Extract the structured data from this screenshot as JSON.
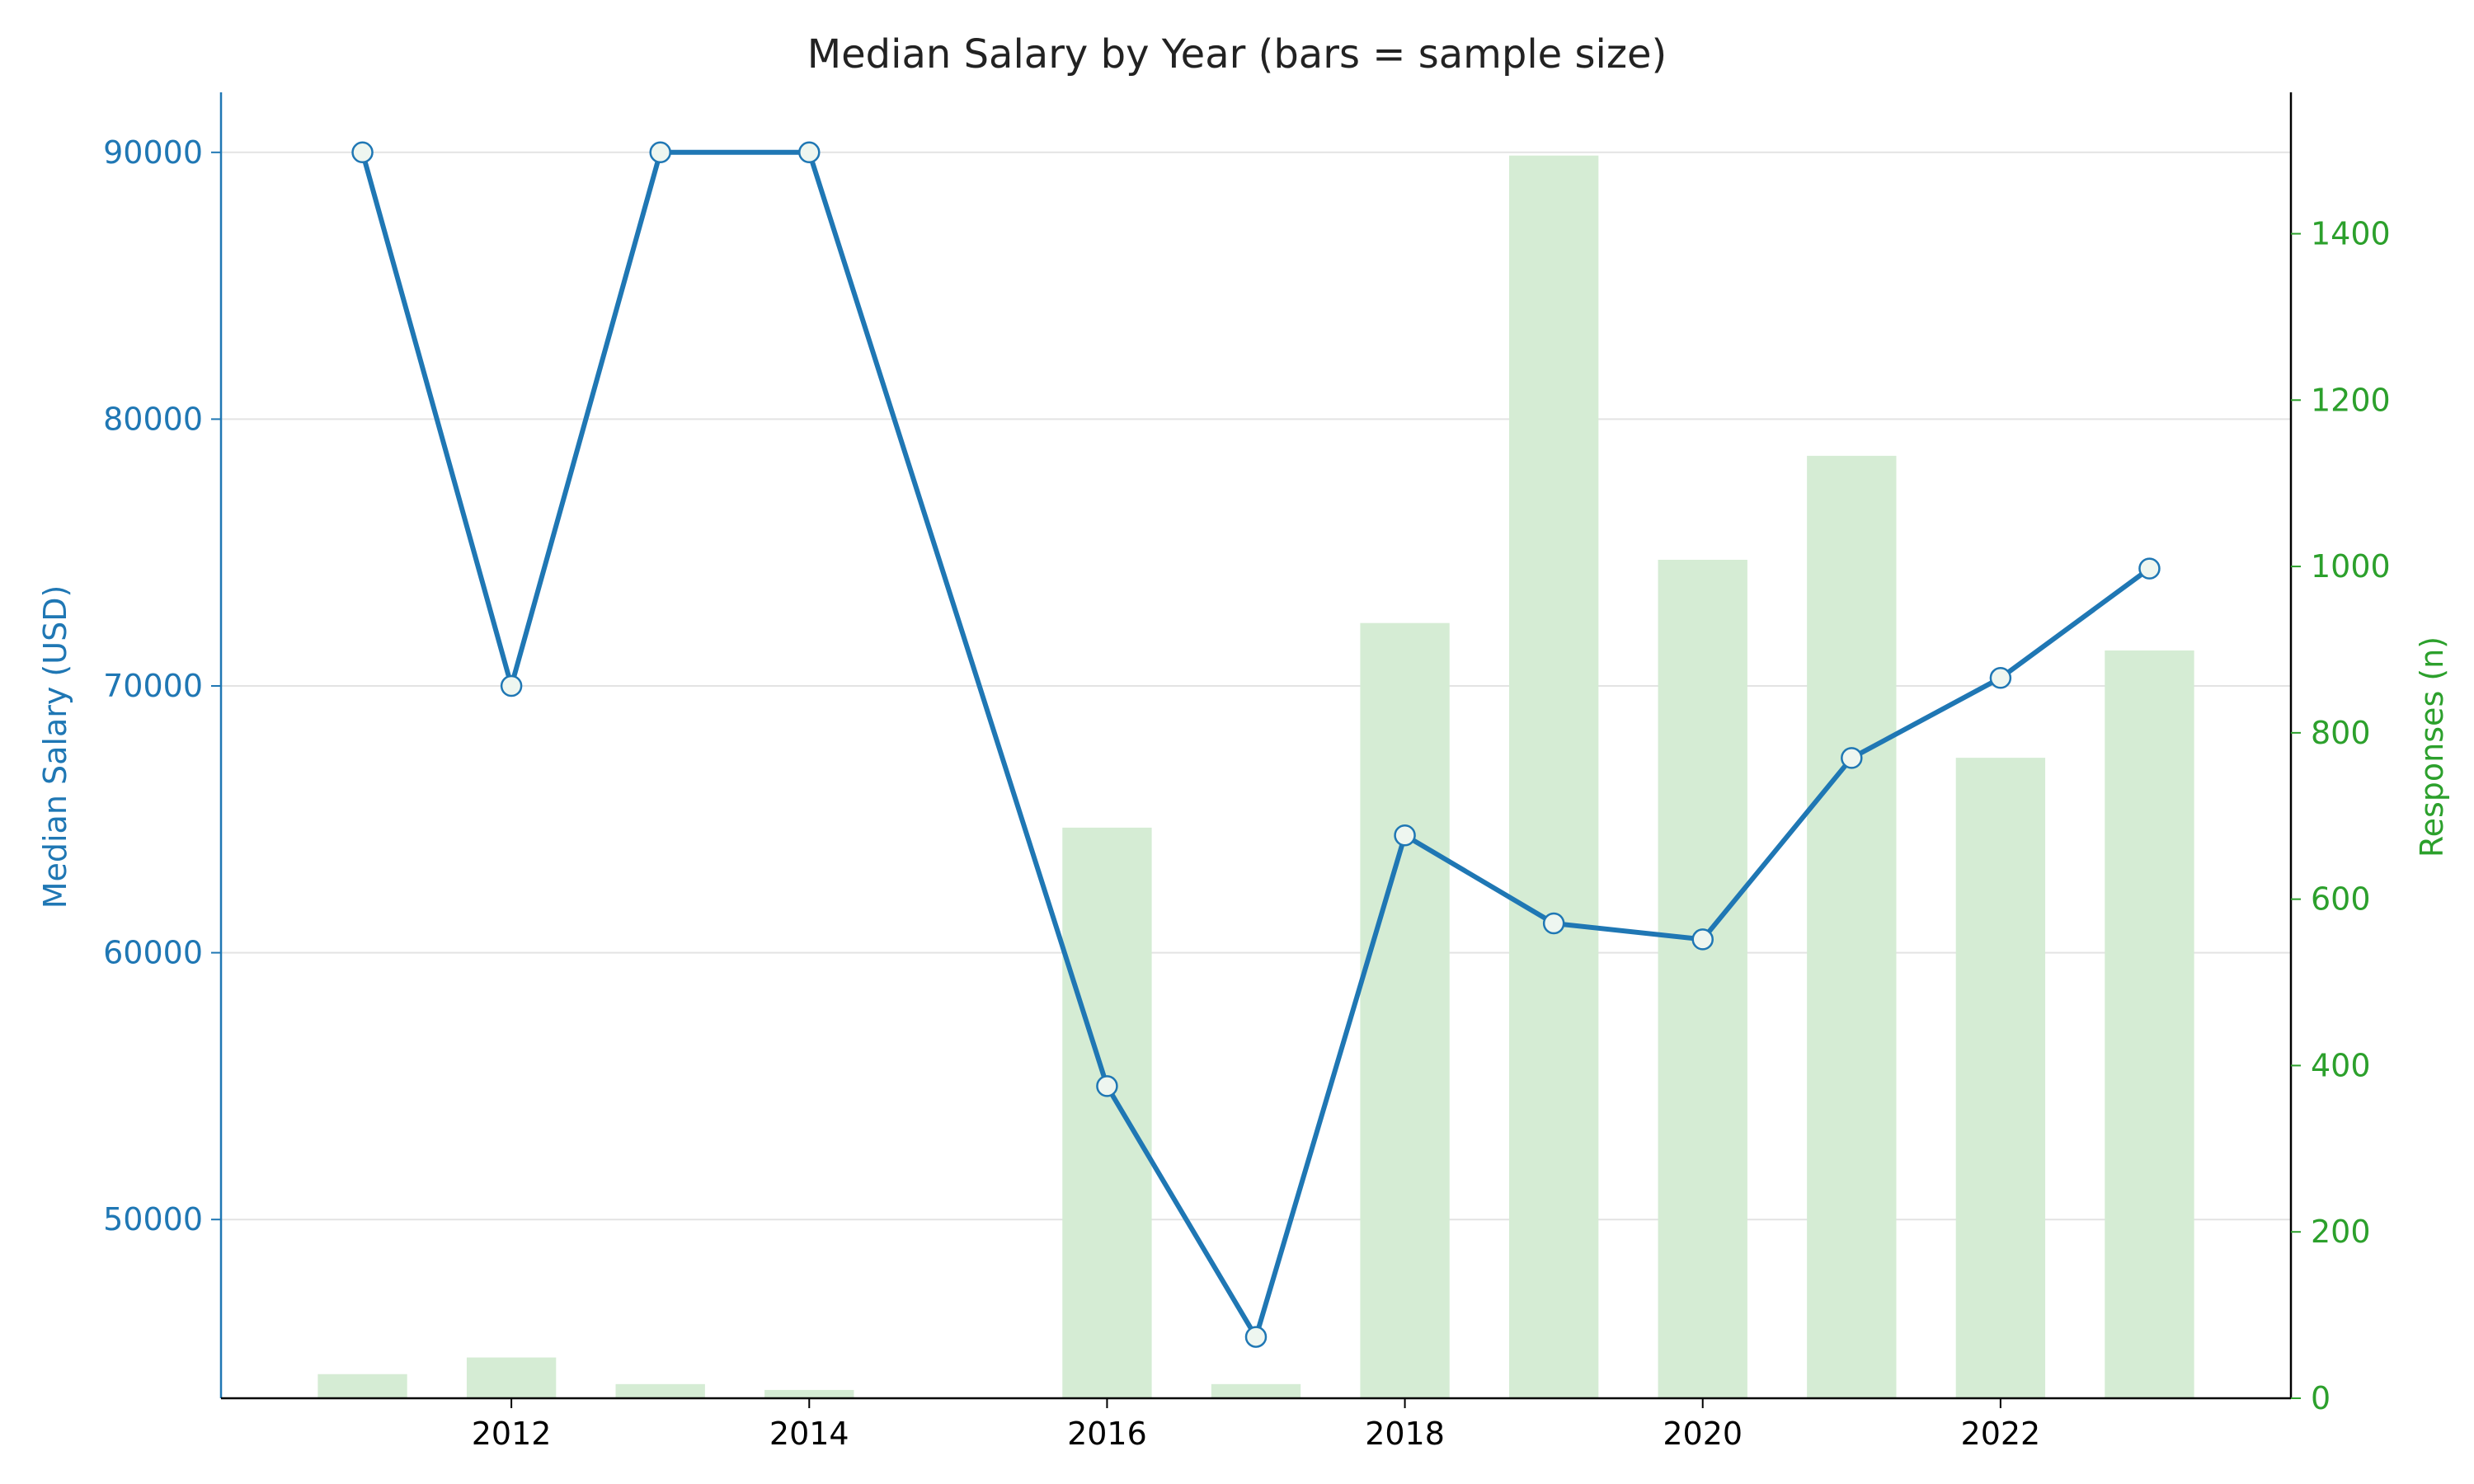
{
  "chart_data": {
    "type": "bar+line",
    "title": "Median Salary by Year (bars = sample size)",
    "xlabel": "",
    "x": [
      2011,
      2012,
      2013,
      2014,
      2015,
      2016,
      2017,
      2018,
      2019,
      2020,
      2021,
      2022,
      2023
    ],
    "x_ticks": [
      2012,
      2014,
      2016,
      2018,
      2020,
      2022
    ],
    "xlim": [
      2010.05,
      2023.95
    ],
    "bars": {
      "axis": "right",
      "ylabel": "Responses (n)",
      "ylim": [
        0,
        1570
      ],
      "ticks": [
        0,
        200,
        400,
        600,
        800,
        1000,
        1200,
        1400
      ],
      "values": [
        29,
        49,
        17,
        10,
        0,
        686,
        17,
        932,
        1494,
        1008,
        1133,
        770,
        899
      ],
      "color": "#d5ecd4"
    },
    "line": {
      "axis": "left",
      "ylabel": "Median Salary (USD)",
      "ylim": [
        43300,
        92250
      ],
      "ticks": [
        50000,
        60000,
        70000,
        80000,
        90000
      ],
      "x": [
        2011,
        2012,
        2013,
        2014,
        2016,
        2017,
        2018,
        2019,
        2020,
        2021,
        2022,
        2023
      ],
      "values": [
        90000,
        70000,
        90000,
        90000,
        55000,
        45600,
        64400,
        61100,
        60500,
        67300,
        70300,
        74400
      ],
      "color": "#1f77b4"
    },
    "colors": {
      "left_axis": "#1f77b4",
      "right_axis": "#2ca02c",
      "grid": "#e3e3e3",
      "marker_fill": "#eef6f0"
    },
    "grid": true
  }
}
